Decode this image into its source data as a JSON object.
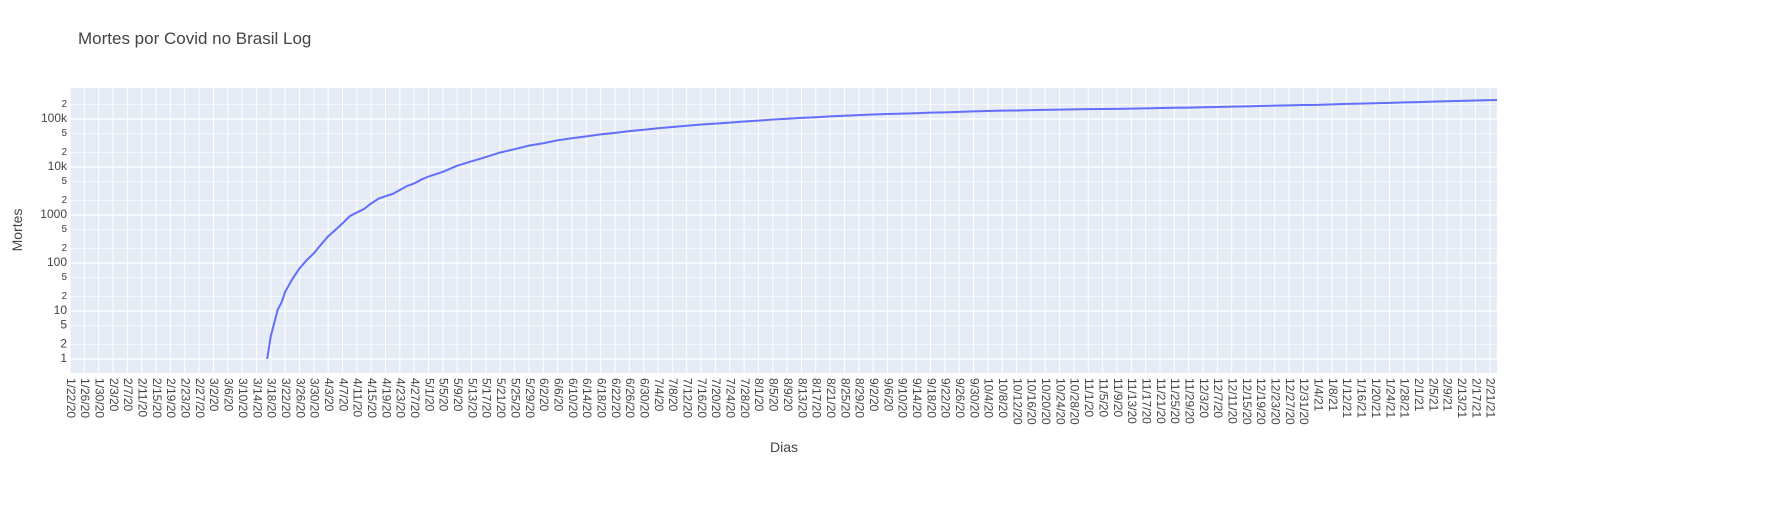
{
  "chart_data": {
    "type": "line",
    "title": "Mortes por Covid no Brasil Log",
    "x_label": "Dias",
    "y_label": "Mortes",
    "log_y": true,
    "grid": true,
    "background": "#e5ecf6",
    "xlim": [
      "1/22/20",
      "2/23/21"
    ],
    "xticks": [
      "1/22/20",
      "1/26/20",
      "1/30/20",
      "2/3/20",
      "2/7/20",
      "2/11/20",
      "2/15/20",
      "2/19/20",
      "2/23/20",
      "2/27/20",
      "3/2/20",
      "3/6/20",
      "3/10/20",
      "3/14/20",
      "3/18/20",
      "3/22/20",
      "3/26/20",
      "3/30/20",
      "4/3/20",
      "4/7/20",
      "4/11/20",
      "4/15/20",
      "4/19/20",
      "4/23/20",
      "4/27/20",
      "5/1/20",
      "5/5/20",
      "5/9/20",
      "5/13/20",
      "5/17/20",
      "5/21/20",
      "5/25/20",
      "5/29/20",
      "6/2/20",
      "6/6/20",
      "6/10/20",
      "6/14/20",
      "6/18/20",
      "6/22/20",
      "6/26/20",
      "6/30/20",
      "7/4/20",
      "7/8/20",
      "7/12/20",
      "7/16/20",
      "7/20/20",
      "7/24/20",
      "7/28/20",
      "8/1/20",
      "8/5/20",
      "8/9/20",
      "8/13/20",
      "8/17/20",
      "8/21/20",
      "8/25/20",
      "8/29/20",
      "9/2/20",
      "9/6/20",
      "9/10/20",
      "9/14/20",
      "9/18/20",
      "9/22/20",
      "9/26/20",
      "9/30/20",
      "10/4/20",
      "10/8/20",
      "10/12/20",
      "10/16/20",
      "10/20/20",
      "10/24/20",
      "10/28/20",
      "11/1/20",
      "11/5/20",
      "11/9/20",
      "11/13/20",
      "11/17/20",
      "11/21/20",
      "11/25/20",
      "11/29/20",
      "12/3/20",
      "12/7/20",
      "12/11/20",
      "12/15/20",
      "12/19/20",
      "12/23/20",
      "12/27/20",
      "12/31/20",
      "1/4/21",
      "1/8/21",
      "1/12/21",
      "1/16/21",
      "1/20/21",
      "1/24/21",
      "1/28/21",
      "2/1/21",
      "2/5/21",
      "2/9/21",
      "2/13/21",
      "2/17/21",
      "2/21/21"
    ],
    "ylim": [
      0.51,
      442000
    ],
    "yticks": [
      1,
      {
        "value": 2,
        "label": "2"
      },
      {
        "value": 5,
        "label": "5"
      },
      10,
      {
        "value": 20,
        "label": "2"
      },
      {
        "value": 50,
        "label": "5"
      },
      100,
      {
        "value": 200,
        "label": "2"
      },
      {
        "value": 500,
        "label": "5"
      },
      1000,
      {
        "value": 2000,
        "label": "2"
      },
      {
        "value": 5000,
        "label": "5"
      },
      {
        "value": 10000,
        "label": "10k"
      },
      {
        "value": 20000,
        "label": "2"
      },
      {
        "value": 50000,
        "label": "5"
      },
      {
        "value": 100000,
        "label": "100k"
      },
      {
        "value": 200000,
        "label": "2"
      }
    ],
    "series": [
      {
        "name": "Mortes",
        "color": "#636efa",
        "x": [
          "3/17/20",
          "3/18/20",
          "3/20/20",
          "3/21/20",
          "3/22/20",
          "3/24/20",
          "3/26/20",
          "3/28/20",
          "3/30/20",
          "4/1/20",
          "4/3/20",
          "4/5/20",
          "4/7/20",
          "4/9/20",
          "4/11/20",
          "4/13/20",
          "4/15/20",
          "4/17/20",
          "4/19/20",
          "4/21/20",
          "4/23/20",
          "4/25/20",
          "4/27/20",
          "4/29/20",
          "5/1/20",
          "5/5/20",
          "5/9/20",
          "5/13/20",
          "5/17/20",
          "5/21/20",
          "5/25/20",
          "5/29/20",
          "6/2/20",
          "6/6/20",
          "6/10/20",
          "6/14/20",
          "6/18/20",
          "6/22/20",
          "6/26/20",
          "6/30/20",
          "7/4/20",
          "7/8/20",
          "7/12/20",
          "7/16/20",
          "7/20/20",
          "7/24/20",
          "7/28/20",
          "8/1/20",
          "8/5/20",
          "8/9/20",
          "8/13/20",
          "8/17/20",
          "8/21/20",
          "8/25/20",
          "8/29/20",
          "9/2/20",
          "9/6/20",
          "9/10/20",
          "9/14/20",
          "9/18/20",
          "9/22/20",
          "9/26/20",
          "9/30/20",
          "10/4/20",
          "10/8/20",
          "10/12/20",
          "10/16/20",
          "10/20/20",
          "10/24/20",
          "10/28/20",
          "11/1/20",
          "11/5/20",
          "11/9/20",
          "11/13/20",
          "11/17/20",
          "11/21/20",
          "11/25/20",
          "11/29/20",
          "12/3/20",
          "12/7/20",
          "12/11/20",
          "12/15/20",
          "12/19/20",
          "12/23/20",
          "12/27/20",
          "12/31/20",
          "1/4/21",
          "1/8/21",
          "1/12/21",
          "1/16/21",
          "1/20/21",
          "1/24/21",
          "1/28/21",
          "2/1/21",
          "2/5/21",
          "2/9/21",
          "2/13/21",
          "2/17/21",
          "2/21/21",
          "2/23/21"
        ],
        "values": [
          1,
          3,
          11,
          15,
          25,
          46,
          77,
          114,
          159,
          241,
          359,
          486,
          667,
          941,
          1124,
          1328,
          1736,
          2171,
          2462,
          2741,
          3313,
          4016,
          4543,
          5466,
          6329,
          7921,
          10627,
          13149,
          16118,
          20047,
          23473,
          27878,
          31199,
          35930,
          39680,
          43332,
          47748,
          51271,
          55961,
          59594,
          64265,
          67964,
          72100,
          76688,
          80120,
          84082,
          88539,
          92475,
          97256,
          101049,
          105463,
          108536,
          113358,
          116580,
          120262,
          123780,
          126650,
          129522,
          132006,
          135793,
          137272,
          140537,
          143952,
          146352,
          148957,
          150488,
          153214,
          154837,
          156903,
          158969,
          160253,
          161736,
          162628,
          164737,
          166699,
          169183,
          171460,
          172833,
          175270,
          177317,
          180437,
          182799,
          186356,
          189220,
          191570,
          194949,
          196561,
          201460,
          205964,
          209296,
          212831,
          217037,
          221547,
          225099,
          230034,
          233520,
          238532,
          242090,
          246504,
          248529
        ]
      }
    ]
  }
}
